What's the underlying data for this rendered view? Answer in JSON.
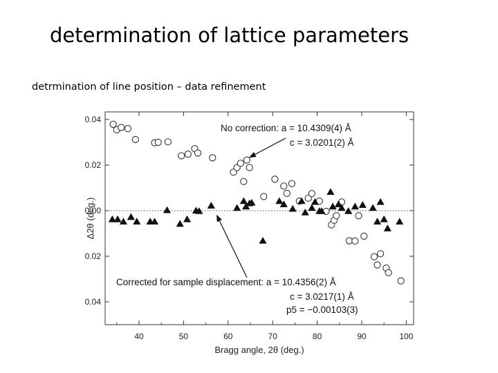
{
  "slide": {
    "title": "determination of lattice parameters",
    "subtitle": "detrmination of line position – data refinement"
  },
  "chart_data": {
    "type": "scatter",
    "xlabel": "Bragg angle, 2θ (deg.)",
    "ylabel": "Δ2θ (deg.)",
    "xlim": [
      32,
      101
    ],
    "ylim": [
      -0.05,
      0.04
    ],
    "x_ticks": [
      40,
      50,
      60,
      70,
      80,
      90,
      100
    ],
    "y_ticks": [
      {
        "value": 0.04,
        "label": "0.04"
      },
      {
        "value": 0.02,
        "label": "0.02"
      },
      {
        "value": 0.0,
        "label": "0.00"
      },
      {
        "value": -0.02,
        "label": "0.02"
      },
      {
        "value": -0.04,
        "label": "0.04"
      }
    ],
    "zero_line": true,
    "series": [
      {
        "marker": "open-circle",
        "x": [
          34.2,
          35.0,
          36.0,
          37.5,
          39.2,
          43.5,
          44.3,
          46.5,
          49.5,
          51.0,
          52.5,
          53.2,
          56.5,
          61.2,
          62.0,
          62.8,
          63.5,
          64.2,
          64.8,
          68.0,
          70.5,
          72.5,
          73.2,
          74.3,
          76.0,
          78.0,
          78.8,
          80.5,
          82.0,
          83.2,
          83.8,
          84.3,
          85.5,
          87.2,
          88.5,
          89.3,
          90.5,
          92.8,
          93.5,
          94.2,
          95.5,
          96.0,
          98.8
        ],
        "y": [
          0.0379,
          0.0355,
          0.0365,
          0.036,
          0.0312,
          0.0298,
          0.03,
          0.0302,
          0.0241,
          0.0248,
          0.0272,
          0.0253,
          0.0232,
          0.0169,
          0.0189,
          0.0208,
          0.0128,
          0.0222,
          0.0189,
          0.0062,
          0.0138,
          0.0108,
          0.0076,
          0.0119,
          0.0042,
          0.0055,
          0.0075,
          0.0042,
          -0.0003,
          -0.0062,
          -0.0042,
          -0.0022,
          0.0038,
          -0.0132,
          -0.0133,
          -0.0022,
          -0.0112,
          -0.0202,
          -0.0238,
          -0.0189,
          -0.0252,
          -0.0272,
          -0.0308
        ]
      },
      {
        "marker": "filled-triangle",
        "x": [
          34.0,
          35.2,
          36.5,
          38.2,
          39.5,
          42.5,
          43.5,
          46.3,
          49.2,
          50.8,
          52.8,
          53.5,
          56.2,
          62.0,
          63.5,
          64.0,
          64.8,
          65.3,
          67.8,
          71.5,
          72.5,
          74.5,
          76.5,
          77.3,
          78.8,
          79.5,
          80.5,
          81.0,
          83.0,
          83.5,
          84.8,
          85.5,
          87.0,
          88.5,
          90.2,
          92.5,
          93.5,
          94.2,
          95.0,
          95.8,
          98.5
        ],
        "y": [
          -0.0038,
          -0.0038,
          -0.0048,
          -0.0028,
          -0.0048,
          -0.0048,
          -0.0048,
          0.0002,
          -0.0058,
          -0.0038,
          0.0,
          -0.0002,
          0.0022,
          0.0012,
          0.0042,
          0.0018,
          0.0032,
          0.0035,
          -0.0132,
          0.0042,
          0.0028,
          0.0008,
          0.0042,
          -0.0008,
          0.0012,
          0.0038,
          -0.0002,
          -0.0002,
          0.0082,
          0.0018,
          0.0028,
          0.0012,
          -0.0002,
          0.0018,
          0.0025,
          0.0012,
          -0.0048,
          0.0038,
          -0.0038,
          -0.0078,
          -0.0048
        ]
      }
    ],
    "annotations": [
      {
        "lines": [
          "No correction: a = 10.4309(4) Å",
          "c =   3.0201(2) Å"
        ],
        "arrow_to": {
          "x": 64.2,
          "y": 0.0222
        }
      },
      {
        "lines": [
          "Corrected for sample displacement: a = 10.4356(2) Å",
          "c =   3.0217(1) Å",
          "p5 = −0.00103(3)"
        ],
        "arrow_to": {
          "x": 57.0,
          "y": -0.0005
        }
      }
    ]
  }
}
